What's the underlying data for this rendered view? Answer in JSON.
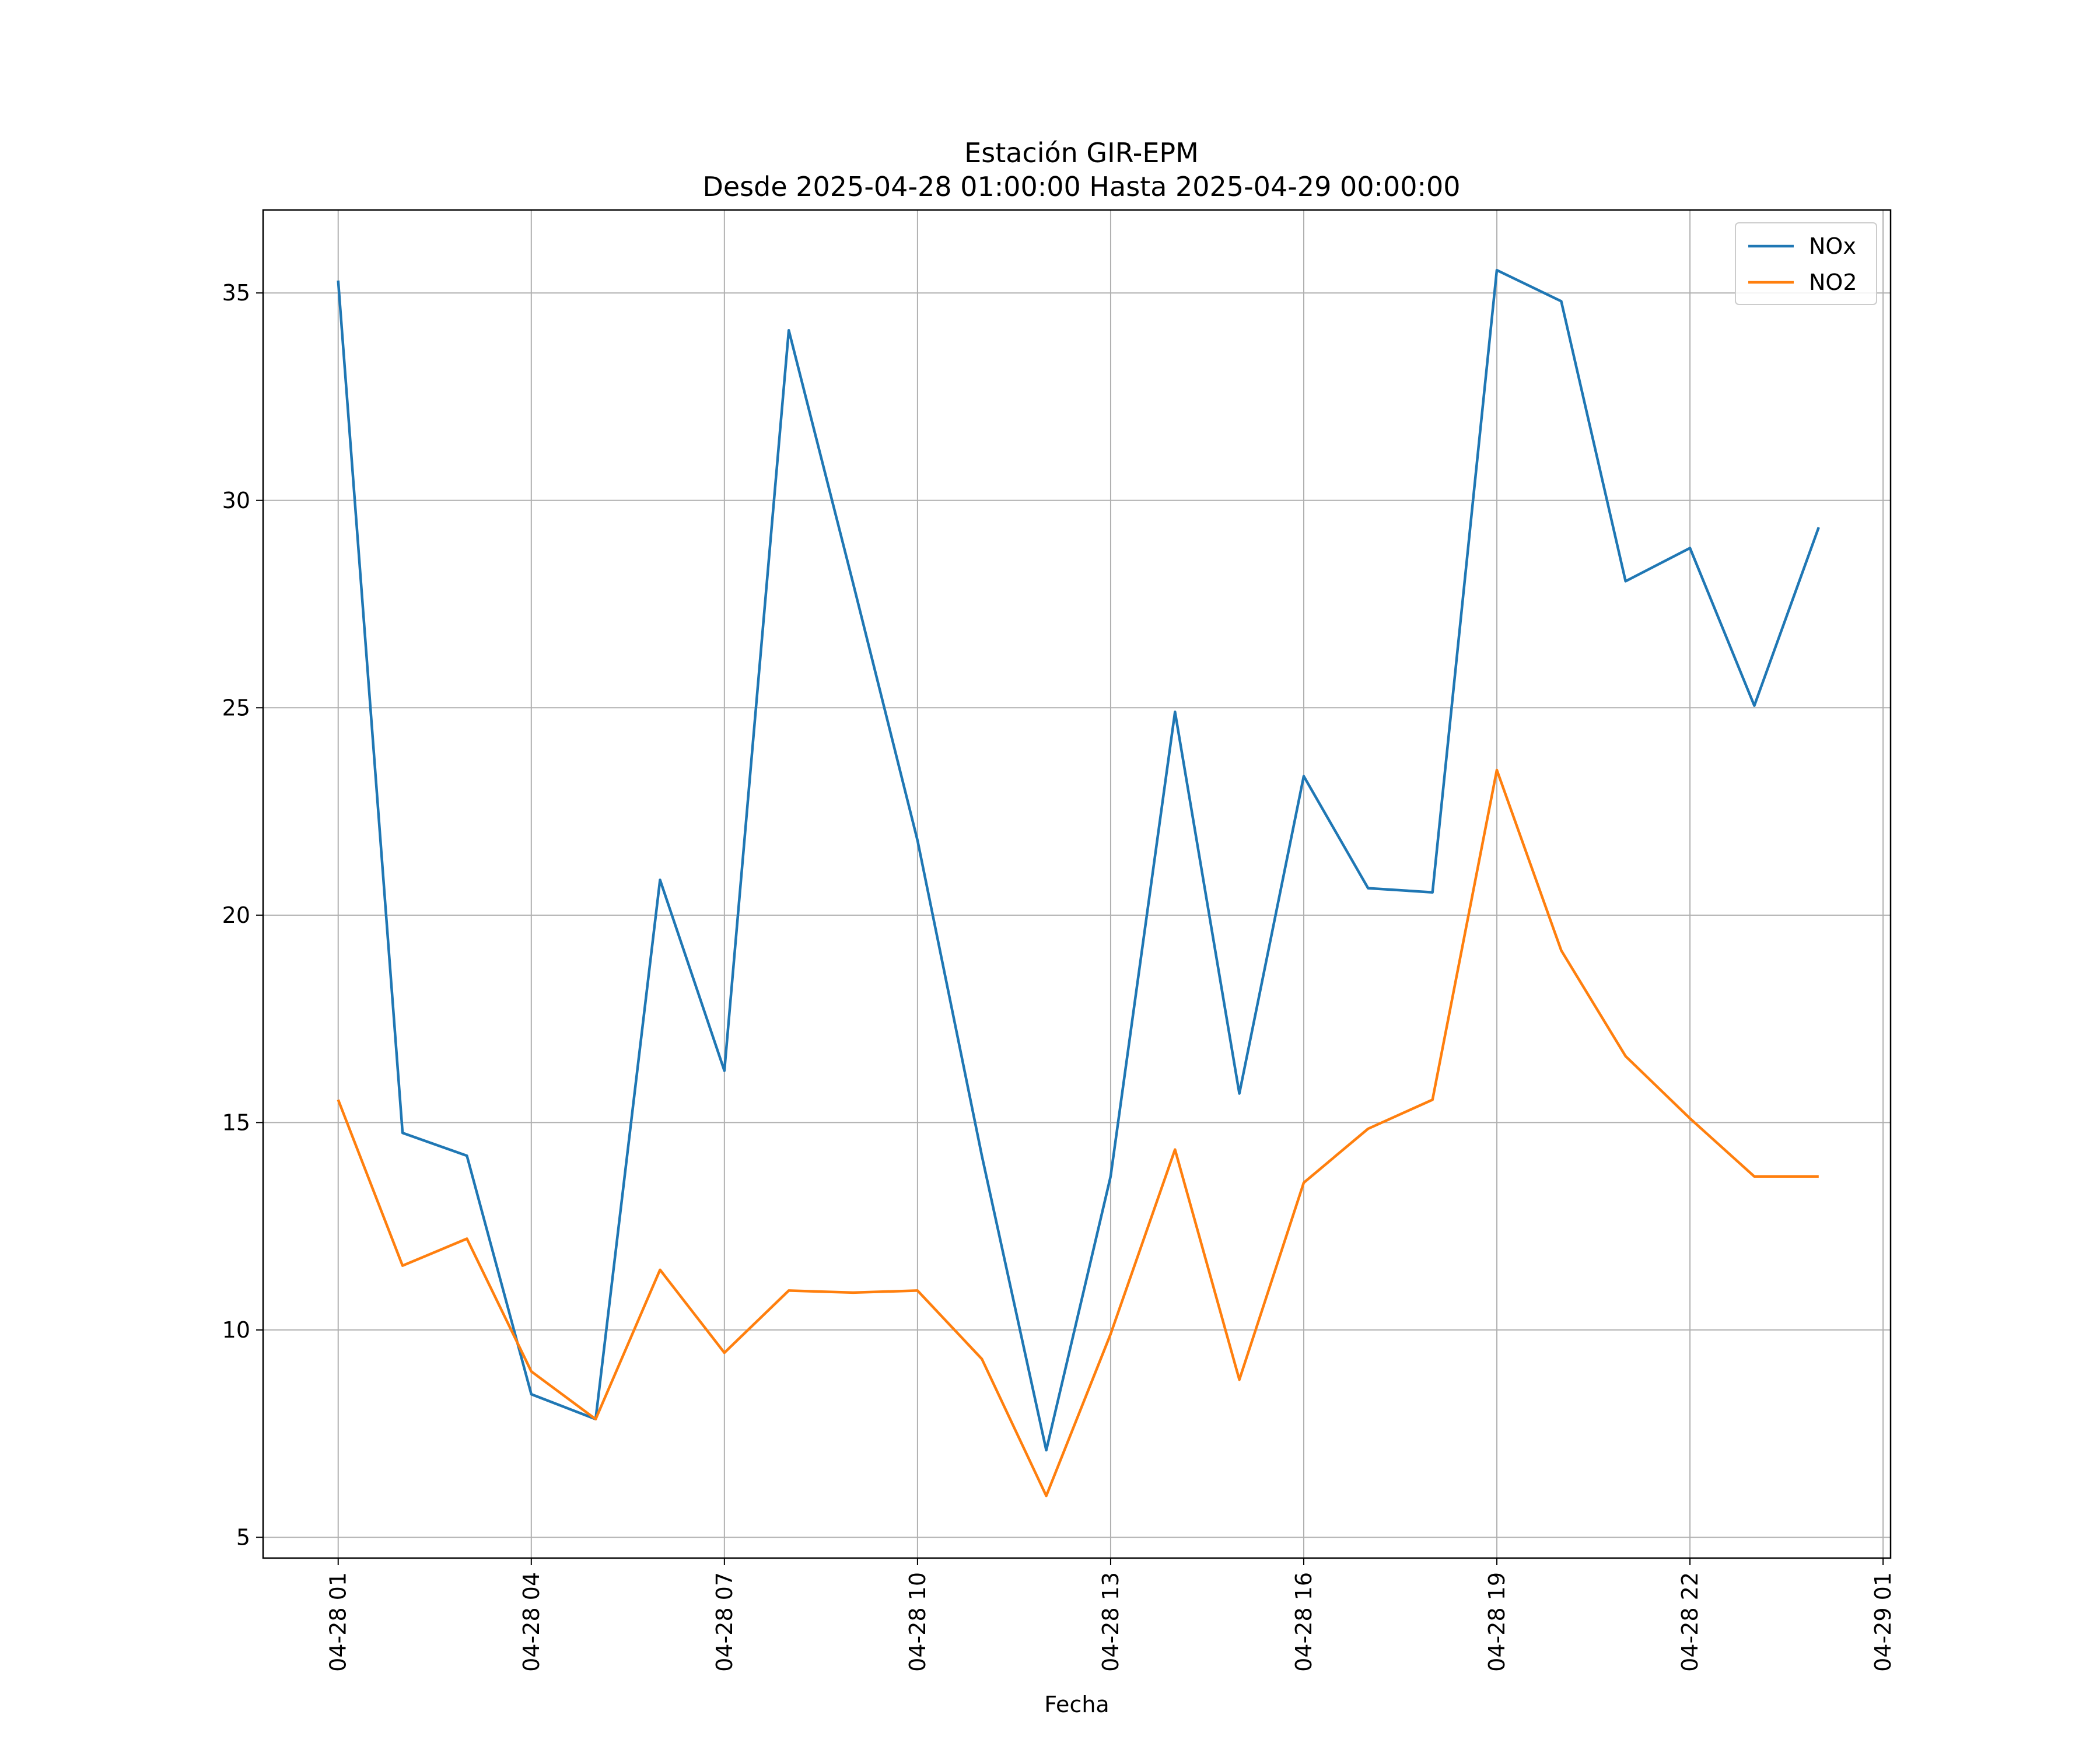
{
  "chart_data": {
    "type": "line",
    "title_line1": "Estación GIR-EPM",
    "title_line2": "Desde 2025-04-28 01:00:00 Hasta 2025-04-29 00:00:00",
    "xlabel": "Fecha",
    "ylabel": "",
    "x": [
      "04-28 01",
      "04-28 02",
      "04-28 03",
      "04-28 04",
      "04-28 05",
      "04-28 06",
      "04-28 07",
      "04-28 08",
      "04-28 09",
      "04-28 10",
      "04-28 11",
      "04-28 12",
      "04-28 13",
      "04-28 14",
      "04-28 15",
      "04-28 16",
      "04-28 17",
      "04-28 18",
      "04-28 19",
      "04-28 20",
      "04-28 21",
      "04-28 22",
      "04-28 23",
      "04-29 00"
    ],
    "xlim": [
      "04-27 23:50",
      "04-29 01:07"
    ],
    "xticks": [
      "04-28 01",
      "04-28 04",
      "04-28 07",
      "04-28 10",
      "04-28 13",
      "04-28 16",
      "04-28 19",
      "04-28 22",
      "04-29 01"
    ],
    "ylim": [
      4.5,
      37.0
    ],
    "yticks": [
      5,
      10,
      15,
      20,
      25,
      30,
      35
    ],
    "grid": true,
    "legend_position": "top-right",
    "series": [
      {
        "name": "NOx",
        "color": "#1f77b4",
        "values": [
          35.3,
          14.75,
          14.2,
          8.45,
          7.85,
          20.85,
          16.25,
          34.1,
          28.0,
          21.8,
          14.2,
          7.1,
          13.7,
          24.9,
          15.7,
          23.35,
          20.65,
          20.55,
          35.55,
          34.8,
          28.05,
          28.85,
          25.05,
          29.35
        ]
      },
      {
        "name": "NO2",
        "color": "#ff7f0e",
        "values": [
          15.55,
          11.55,
          12.2,
          9.0,
          7.85,
          11.45,
          9.45,
          10.95,
          10.9,
          10.95,
          9.3,
          6.0,
          9.9,
          14.35,
          8.8,
          13.55,
          14.85,
          15.55,
          23.5,
          19.15,
          16.6,
          15.1,
          13.7,
          13.7
        ]
      }
    ]
  }
}
